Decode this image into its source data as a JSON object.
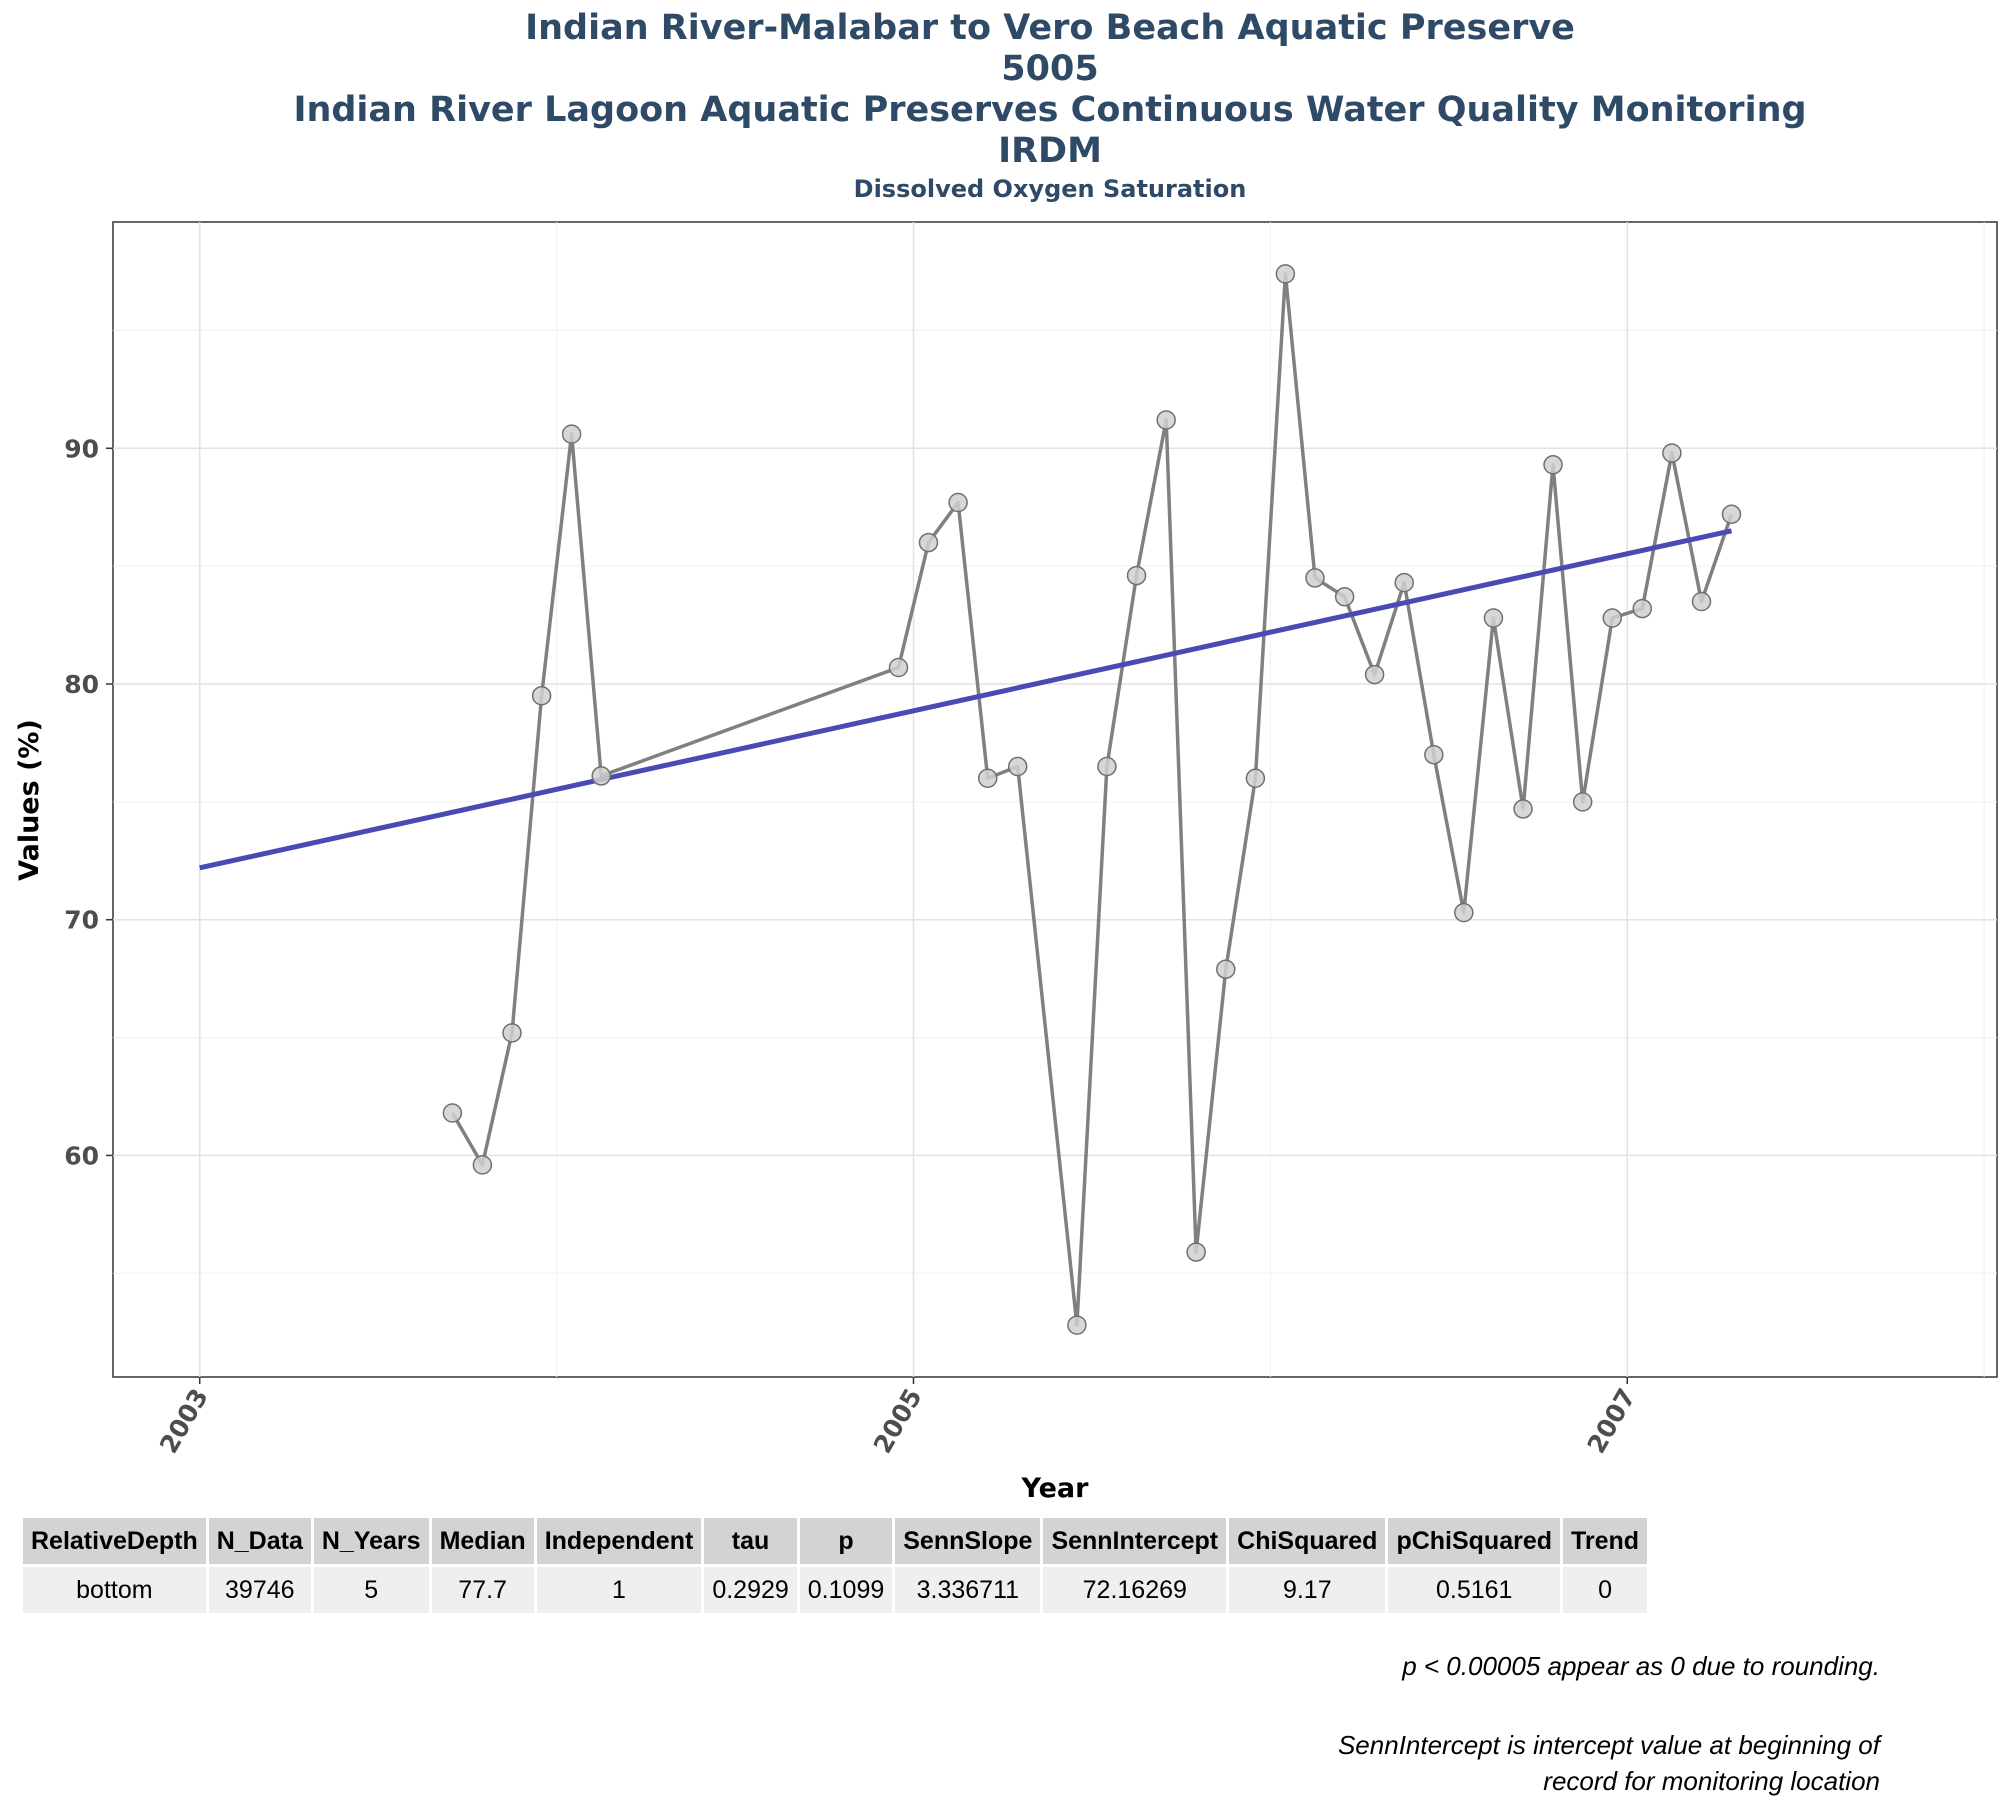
{
  "titles": {
    "line1": "Indian River-Malabar to Vero Beach Aquatic Preserve",
    "line2": "5005",
    "line3": "Indian River Lagoon Aquatic Preserves Continuous Water Quality Monitoring",
    "line4": "IRDM",
    "subtitle": "Dissolved Oxygen Saturation"
  },
  "chart_data": {
    "type": "line",
    "xlabel": "Year",
    "ylabel": "Values (%)",
    "xlim": [
      2002.757,
      2008.036
    ],
    "ylim": [
      50.6,
      99.6
    ],
    "x_ticks": [
      2003,
      2005,
      2007
    ],
    "y_ticks": [
      60,
      70,
      80,
      90
    ],
    "grid": true,
    "series": [
      {
        "x": [
          2003.708,
          2003.792,
          2003.875,
          2003.958,
          2004.042,
          2004.125,
          2004.958,
          2005.042,
          2005.125,
          2005.208,
          2005.292,
          2005.458,
          2005.542,
          2005.625,
          2005.708,
          2005.792,
          2005.875,
          2005.958,
          2006.042,
          2006.125,
          2006.208,
          2006.292,
          2006.375,
          2006.458,
          2006.542,
          2006.625,
          2006.708,
          2006.792,
          2006.875,
          2006.958,
          2007.042,
          2007.125,
          2007.208,
          2007.292
        ],
        "y": [
          61.8,
          59.6,
          65.2,
          79.5,
          90.6,
          76.1,
          80.7,
          86.0,
          87.7,
          76.0,
          76.5,
          52.8,
          76.5,
          84.6,
          91.2,
          55.9,
          67.9,
          76.0,
          97.4,
          84.5,
          83.7,
          80.4,
          84.3,
          77.0,
          70.3,
          82.8,
          74.7,
          89.3,
          75.0,
          82.8,
          83.2,
          89.8,
          83.5,
          87.2
        ]
      }
    ],
    "trend_line": {
      "x": [
        2003.0,
        2007.292
      ],
      "y": [
        72.2,
        86.5
      ]
    },
    "colors": {
      "series": "#808080",
      "marker_fill": "#d0d0d0",
      "marker_stroke": "#707070",
      "trend": "#4a4ab4",
      "title": "#2e4a66"
    }
  },
  "table": {
    "headers": [
      "RelativeDepth",
      "N_Data",
      "N_Years",
      "Median",
      "Independent",
      "tau",
      "p",
      "SennSlope",
      "SennIntercept",
      "ChiSquared",
      "pChiSquared",
      "Trend"
    ],
    "rows": [
      [
        "bottom",
        "39746",
        "5",
        "77.7",
        "1",
        "0.2929",
        "0.1099",
        "3.336711",
        "72.16269",
        "9.17",
        "0.5161",
        "0"
      ]
    ]
  },
  "notes": {
    "note1": "p < 0.00005 appear as 0 due to rounding.",
    "note2_line1": "SennIntercept is intercept value at beginning of",
    "note2_line2": "record for monitoring location"
  }
}
